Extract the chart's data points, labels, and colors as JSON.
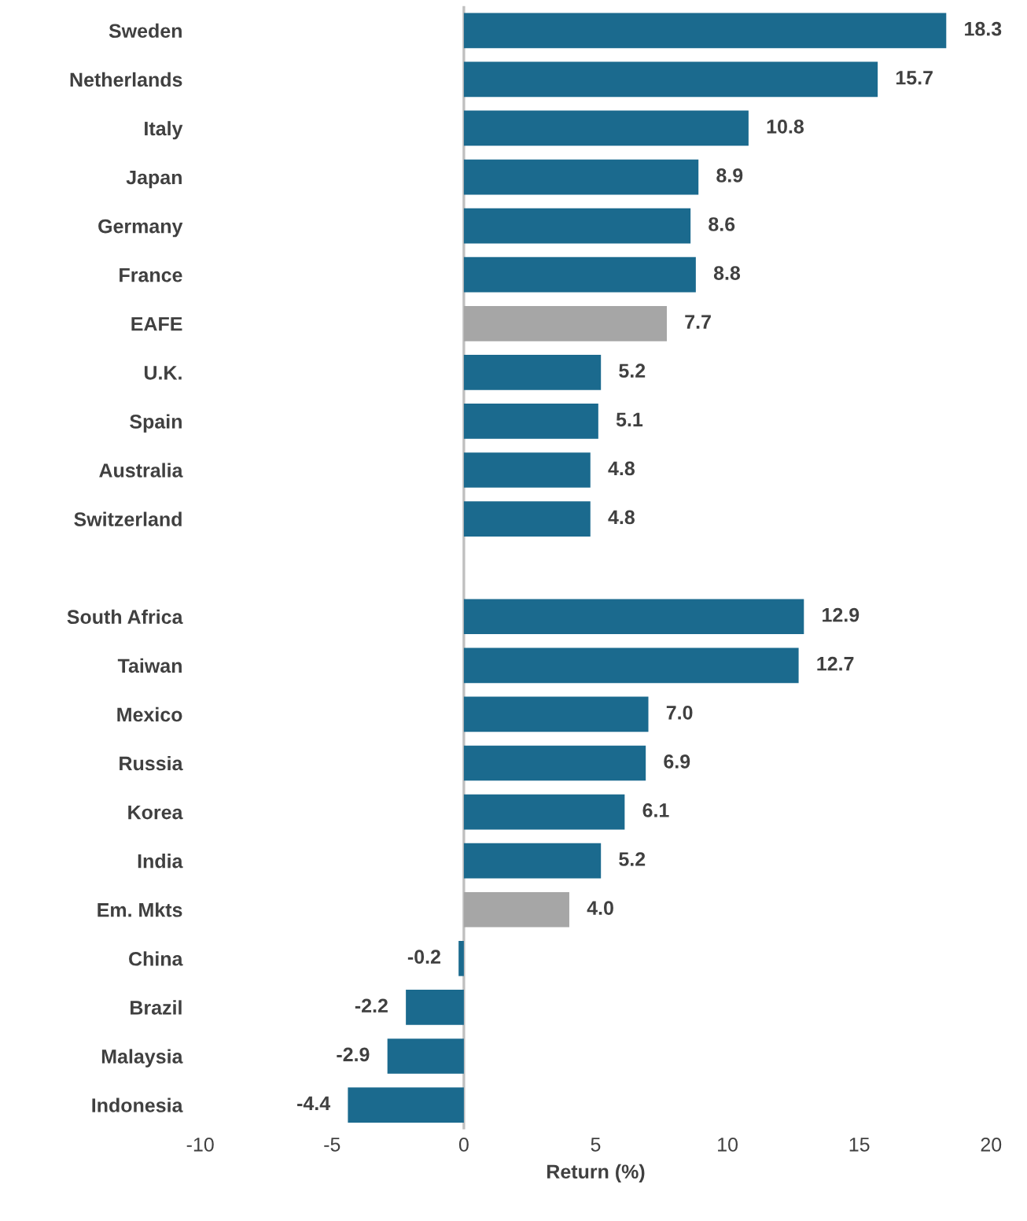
{
  "chart_data": {
    "type": "bar",
    "orientation": "horizontal",
    "xlabel": "Return (%)",
    "categories": [
      "Sweden",
      "Netherlands",
      "Italy",
      "Japan",
      "Germany",
      "France",
      "EAFE",
      "U.K.",
      "Spain",
      "Australia",
      "Switzerland",
      null,
      "South Africa",
      "Taiwan",
      "Mexico",
      "Russia",
      "Korea",
      "India",
      "Em. Mkts",
      "China",
      "Brazil",
      "Malaysia",
      "Indonesia"
    ],
    "values": [
      18.3,
      15.7,
      10.8,
      8.9,
      8.6,
      8.8,
      7.7,
      5.2,
      5.1,
      4.8,
      4.8,
      null,
      12.9,
      12.7,
      7.0,
      6.9,
      6.1,
      5.2,
      4.0,
      -0.2,
      -2.2,
      -2.9,
      -4.4
    ],
    "colors": [
      "#1b6a8e",
      "#1b6a8e",
      "#1b6a8e",
      "#1b6a8e",
      "#1b6a8e",
      "#1b6a8e",
      "#a6a6a6",
      "#1b6a8e",
      "#1b6a8e",
      "#1b6a8e",
      "#1b6a8e",
      "#1b6a8e",
      "#1b6a8e",
      "#1b6a8e",
      "#1b6a8e",
      "#1b6a8e",
      "#1b6a8e",
      "#1b6a8e",
      "#a6a6a6",
      "#1b6a8e",
      "#1b6a8e",
      "#1b6a8e",
      "#1b6a8e"
    ],
    "value_labels": [
      "18.3",
      "15.7",
      "10.8",
      "8.9",
      "8.6",
      "8.8",
      "7.7",
      "5.2",
      "5.1",
      "4.8",
      "4.8",
      null,
      "12.9",
      "12.7",
      "7.0",
      "6.9",
      "6.1",
      "5.2",
      "4.0",
      "-0.2",
      "-2.2",
      "-2.9",
      "-4.4"
    ],
    "xlim": [
      -10,
      20
    ],
    "xticks": [
      -10,
      -5,
      0,
      5,
      10,
      15,
      20
    ],
    "ref_lines": [
      {
        "axis": "x",
        "value": 0,
        "color": "#bfbfbf"
      }
    ],
    "grid": false,
    "legend": false
  }
}
